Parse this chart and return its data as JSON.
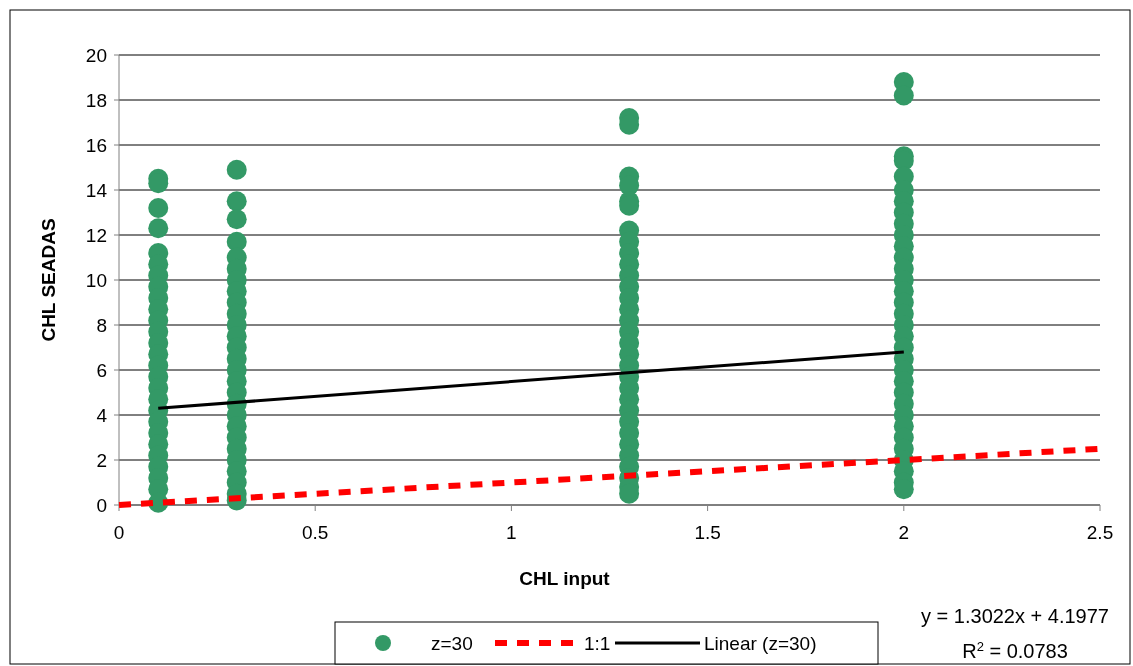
{
  "chart_data": {
    "type": "scatter",
    "xlabel": "CHL input",
    "ylabel": "CHL SEADAS",
    "xlim": [
      0,
      2.5
    ],
    "xticks": [
      0,
      0.5,
      1,
      1.5,
      2,
      2.5
    ],
    "ylim": [
      0,
      20
    ],
    "yticks": [
      0,
      2,
      4,
      6,
      8,
      10,
      12,
      14,
      16,
      18,
      20
    ],
    "grid": "y",
    "legend": "bottom",
    "annotations": [
      "y = 1.3022x + 4.1977",
      "R$^{2}$ = 0.0783"
    ],
    "series": [
      {
        "name": "z=30",
        "color": "#339966",
        "marker": "circle",
        "x": [
          0.1,
          0.1,
          0.1,
          0.1,
          0.1,
          0.1,
          0.1,
          0.1,
          0.1,
          0.1,
          0.1,
          0.1,
          0.1,
          0.1,
          0.1,
          0.1,
          0.1,
          0.1,
          0.1,
          0.1,
          0.1,
          0.1,
          0.1,
          0.1,
          0.1,
          0.1,
          0.1,
          0.3,
          0.3,
          0.3,
          0.3,
          0.3,
          0.3,
          0.3,
          0.3,
          0.3,
          0.3,
          0.3,
          0.3,
          0.3,
          0.3,
          0.3,
          0.3,
          0.3,
          0.3,
          0.3,
          0.3,
          0.3,
          0.3,
          0.3,
          0.3,
          0.3,
          0.3,
          0.3,
          1.3,
          1.3,
          1.3,
          1.3,
          1.3,
          1.3,
          1.3,
          1.3,
          1.3,
          1.3,
          1.3,
          1.3,
          1.3,
          1.3,
          1.3,
          1.3,
          1.3,
          1.3,
          1.3,
          1.3,
          1.3,
          1.3,
          1.3,
          1.3,
          1.3,
          1.3,
          1.3,
          1.3,
          1.3,
          1.3,
          1.3,
          2,
          2,
          2,
          2,
          2,
          2,
          2,
          2,
          2,
          2,
          2,
          2,
          2,
          2,
          2,
          2,
          2,
          2,
          2,
          2,
          2,
          2,
          2,
          2,
          2,
          2,
          2,
          2,
          2,
          2,
          2,
          2,
          2
        ],
        "values": [
          14.5,
          14.3,
          13.2,
          12.3,
          11.2,
          10.7,
          10.2,
          9.7,
          9.2,
          8.7,
          8.2,
          7.7,
          7.2,
          6.7,
          6.2,
          5.7,
          5.2,
          4.7,
          4.2,
          3.7,
          3.2,
          2.7,
          2.2,
          1.7,
          1.2,
          0.7,
          0.1,
          14.9,
          13.5,
          12.7,
          11.7,
          11,
          10.5,
          10,
          9.5,
          9,
          8.5,
          8,
          7.5,
          7,
          6.5,
          6,
          5.5,
          5,
          4.5,
          4,
          3.5,
          3,
          2.5,
          2,
          1.5,
          1,
          0.5,
          0.2,
          17.2,
          16.9,
          14.6,
          14.2,
          13.5,
          13.3,
          12.2,
          11.7,
          11.2,
          10.7,
          10.2,
          9.7,
          9.2,
          8.7,
          8.2,
          7.7,
          7.2,
          6.7,
          6.2,
          5.7,
          5.2,
          4.7,
          4.2,
          3.7,
          3.2,
          2.7,
          2.2,
          1.7,
          1.2,
          0.8,
          0.5,
          18.8,
          18.2,
          15.5,
          15.3,
          14.6,
          14,
          13.5,
          13,
          12.5,
          12,
          11.5,
          11,
          10.5,
          10,
          9.5,
          9,
          8.5,
          8,
          7.5,
          7,
          6.5,
          6,
          5.5,
          5,
          4.5,
          4,
          3.5,
          3,
          2.5,
          2,
          1.5,
          1,
          0.7
        ]
      },
      {
        "name": "1:1",
        "type": "line",
        "color": "#ff0000",
        "line_style": "dashed",
        "x": [
          0,
          2.5
        ],
        "values": [
          0,
          2.5
        ]
      },
      {
        "name": "Linear (z=30)",
        "type": "line",
        "color": "#000000",
        "line_style": "solid",
        "x": [
          0.1,
          2
        ],
        "values": [
          4.3,
          6.8
        ]
      }
    ]
  }
}
